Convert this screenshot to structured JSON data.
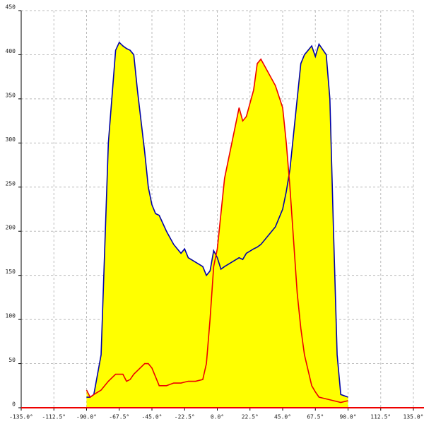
{
  "chart_data": {
    "type": "area-line",
    "x": [
      -90,
      -87.5,
      -85,
      -80,
      -75,
      -70,
      -67.5,
      -65,
      -62.5,
      -60,
      -57.5,
      -55,
      -50,
      -47.5,
      -45,
      -42.5,
      -40,
      -35,
      -30,
      -25,
      -22.5,
      -20,
      -15,
      -10,
      -7.5,
      -5,
      -2.5,
      0,
      2.5,
      5,
      10,
      15,
      17.5,
      20,
      25,
      27.5,
      30,
      35,
      40,
      45,
      47.5,
      50,
      55,
      57.5,
      60,
      65,
      67.5,
      70,
      75,
      77.5,
      80,
      82.5,
      85,
      90
    ],
    "series": [
      {
        "color": "#0000aa",
        "values": [
          12,
          12,
          15,
          60,
          300,
          405,
          414,
          410,
          407,
          405,
          400,
          360,
          290,
          250,
          230,
          220,
          218,
          200,
          185,
          175,
          180,
          170,
          165,
          160,
          150,
          155,
          178,
          170,
          157,
          160,
          165,
          170,
          168,
          175,
          180,
          182,
          185,
          195,
          205,
          225,
          245,
          270,
          350,
          390,
          400,
          410,
          398,
          412,
          400,
          350,
          200,
          60,
          15,
          12
        ]
      },
      {
        "color": "#ee0000",
        "values": [
          20,
          12,
          15,
          20,
          30,
          38,
          38,
          38,
          30,
          32,
          38,
          42,
          50,
          50,
          45,
          35,
          25,
          25,
          28,
          28,
          29,
          30,
          30,
          32,
          50,
          100,
          160,
          180,
          220,
          260,
          300,
          340,
          325,
          330,
          360,
          390,
          395,
          380,
          365,
          340,
          300,
          250,
          130,
          90,
          60,
          25,
          18,
          12,
          10,
          9,
          8,
          7,
          6,
          8
        ]
      }
    ],
    "fill_color": "#ffff00",
    "xlim": [
      -135,
      135
    ],
    "xticks": [
      {
        "value": -135,
        "label": "-135.0°"
      },
      {
        "value": -112.5,
        "label": "-112.5°"
      },
      {
        "value": -90,
        "label": "-90.0°"
      },
      {
        "value": -67.5,
        "label": "-67.5°"
      },
      {
        "value": -45,
        "label": "-45.0°"
      },
      {
        "value": -22.5,
        "label": "-22.5°"
      },
      {
        "value": 0,
        "label": "0.0°"
      },
      {
        "value": 22.5,
        "label": "22.5°"
      },
      {
        "value": 45,
        "label": "45.0°"
      },
      {
        "value": 67.5,
        "label": "67.5°"
      },
      {
        "value": 90,
        "label": "90.0°"
      },
      {
        "value": 112.5,
        "label": "112.5°"
      },
      {
        "value": 135,
        "label": "135.0°"
      }
    ],
    "ylim": [
      0,
      450
    ],
    "yticks": [
      0,
      50,
      100,
      150,
      200,
      250,
      300,
      350,
      400,
      450
    ],
    "grid": true
  }
}
